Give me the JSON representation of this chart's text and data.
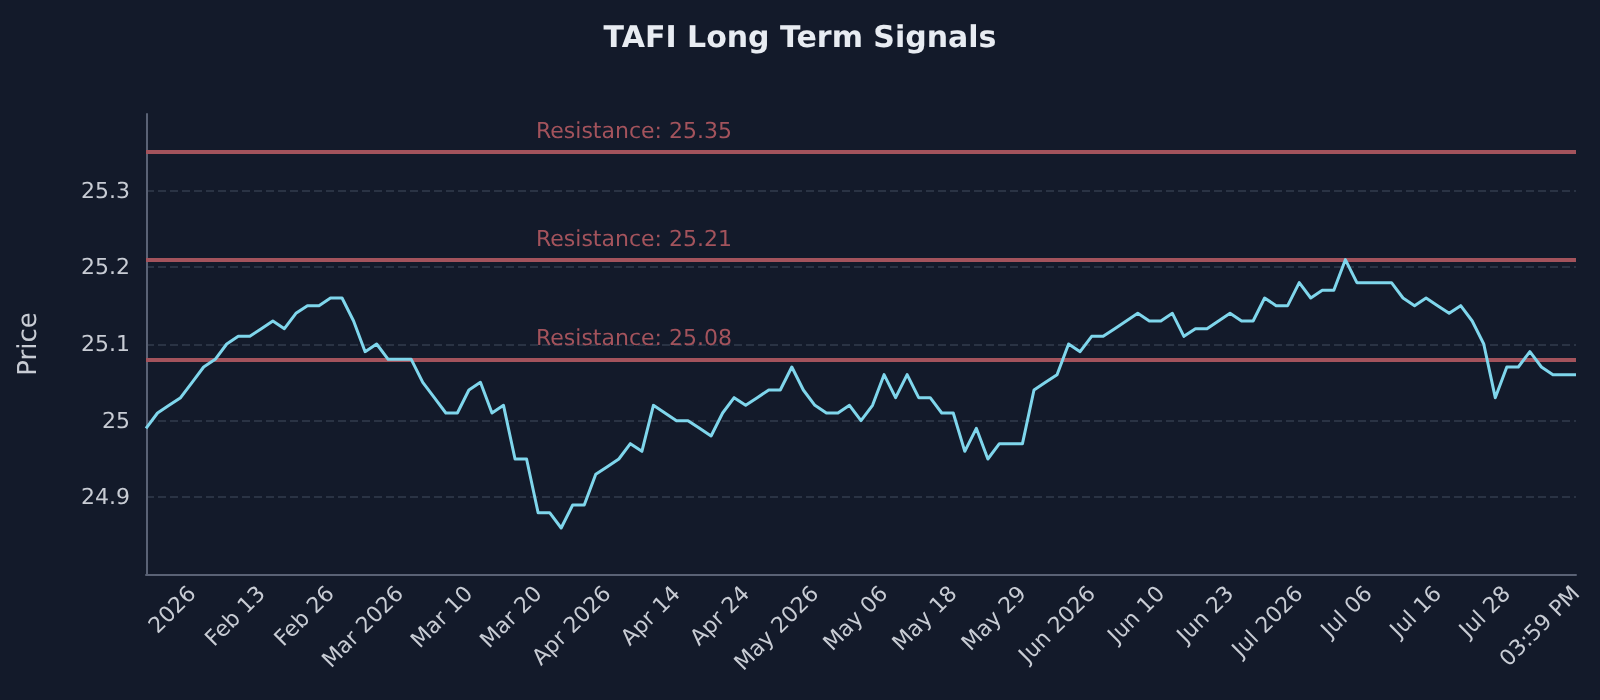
{
  "chart_data": {
    "type": "line",
    "title": "TAFI Long Term Signals",
    "ylabel": "Price",
    "categories": [
      null,
      null,
      null,
      null,
      "2026",
      null,
      null,
      null,
      null,
      null,
      "Feb 13",
      null,
      null,
      null,
      null,
      null,
      "Feb 26",
      null,
      null,
      null,
      null,
      null,
      "Mar 2026",
      null,
      null,
      null,
      null,
      null,
      "Mar 10",
      null,
      null,
      null,
      null,
      null,
      "Mar 20",
      null,
      null,
      null,
      null,
      null,
      "Apr 2026",
      null,
      null,
      null,
      null,
      null,
      "Apr 14",
      null,
      null,
      null,
      null,
      null,
      "Apr 24",
      null,
      null,
      null,
      null,
      null,
      "May 2026",
      null,
      null,
      null,
      null,
      null,
      "May 06",
      null,
      null,
      null,
      null,
      null,
      "May 18",
      null,
      null,
      null,
      null,
      null,
      "May 29",
      null,
      null,
      null,
      null,
      null,
      "Jun 2026",
      null,
      null,
      null,
      null,
      null,
      "Jun 10",
      null,
      null,
      null,
      null,
      null,
      "Jun 23",
      null,
      null,
      null,
      null,
      null,
      "Jul 2026",
      null,
      null,
      null,
      null,
      null,
      "Jul 06",
      null,
      null,
      null,
      null,
      null,
      "Jul 16",
      null,
      null,
      null,
      null,
      null,
      "Jul 28",
      null,
      null,
      null,
      null,
      null,
      "03:59 PM"
    ],
    "series": [
      {
        "color": "#7fd6ec",
        "values": [
          24.99,
          25.01,
          25.02,
          25.03,
          25.05,
          25.07,
          25.08,
          25.1,
          25.11,
          25.11,
          25.12,
          25.13,
          25.12,
          25.14,
          25.15,
          25.15,
          25.16,
          25.16,
          25.13,
          25.09,
          25.1,
          25.08,
          25.08,
          25.08,
          25.05,
          25.03,
          25.01,
          25.01,
          25.04,
          25.05,
          25.01,
          25.02,
          24.95,
          24.95,
          24.88,
          24.88,
          24.86,
          24.89,
          24.89,
          24.93,
          24.94,
          24.95,
          24.97,
          24.96,
          25.02,
          25.01,
          25.0,
          25.0,
          24.99,
          24.98,
          25.01,
          25.03,
          25.02,
          25.03,
          25.04,
          25.04,
          25.07,
          25.04,
          25.02,
          25.01,
          25.01,
          25.02,
          25.0,
          25.02,
          25.06,
          25.03,
          25.06,
          25.03,
          25.03,
          25.01,
          25.01,
          24.96,
          24.99,
          24.95,
          24.97,
          24.97,
          24.97,
          25.04,
          25.05,
          25.06,
          25.1,
          25.09,
          25.11,
          25.11,
          25.12,
          25.13,
          25.14,
          25.13,
          25.13,
          25.14,
          25.11,
          25.12,
          25.12,
          25.13,
          25.14,
          25.13,
          25.13,
          25.16,
          25.15,
          25.15,
          25.18,
          25.16,
          25.17,
          25.17,
          25.21,
          25.18,
          25.18,
          25.18,
          25.18,
          25.16,
          25.15,
          25.16,
          25.15,
          25.14,
          25.15,
          25.13,
          25.1,
          25.03,
          25.07,
          25.07,
          25.09,
          25.07,
          25.06,
          25.06,
          25.06
        ]
      }
    ],
    "ylim": [
      24.8,
      25.4
    ],
    "yticks": [
      24.9,
      25.0,
      25.1,
      25.2,
      25.3
    ],
    "grid": "y",
    "marker": "none",
    "line_style": "solid",
    "ref_lines": [
      {
        "axis": "y",
        "value": 25.35,
        "label": "Resistance: 25.35",
        "color": "#a3535c"
      },
      {
        "axis": "y",
        "value": 25.21,
        "label": "Resistance: 25.21",
        "color": "#a3535c"
      },
      {
        "axis": "y",
        "value": 25.08,
        "label": "Resistance: 25.08",
        "color": "#a3535c"
      }
    ]
  }
}
